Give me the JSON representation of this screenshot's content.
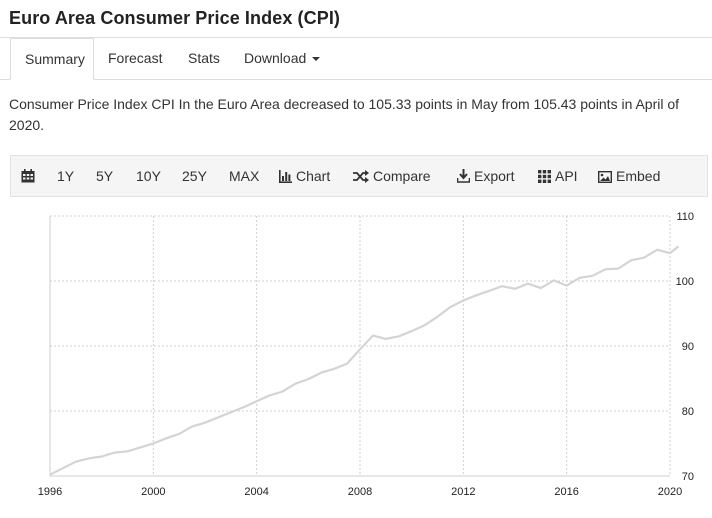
{
  "header": {
    "title": "Euro Area Consumer Price Index (CPI)"
  },
  "tabs": [
    {
      "label": "Summary",
      "active": true
    },
    {
      "label": "Forecast",
      "active": false
    },
    {
      "label": "Stats",
      "active": false
    },
    {
      "label": "Download",
      "active": false,
      "has_dropdown": true
    }
  ],
  "summary": {
    "text": "Consumer Price Index CPI In the Euro Area decreased to 105.33 points in May from 105.43 points in April of 2020."
  },
  "toolbar": {
    "calendar_icon": "calendar-icon",
    "ranges": [
      "1Y",
      "5Y",
      "10Y",
      "25Y",
      "MAX"
    ],
    "chart_label": "Chart",
    "compare_label": "Compare",
    "export_label": "Export",
    "api_label": "API",
    "embed_label": "Embed"
  },
  "colors": {
    "line": "#d4d4d4",
    "grid": "#cfcfcf",
    "border": "#dddddd",
    "toolbar_bg": "#f5f5f5"
  },
  "chart_data": {
    "type": "line",
    "title": "",
    "xlabel": "",
    "ylabel": "",
    "xlim": [
      1996,
      2020.5
    ],
    "ylim": [
      70,
      110
    ],
    "x_ticks": [
      "1996",
      "2000",
      "2004",
      "2008",
      "2012",
      "2016",
      "2020"
    ],
    "y_ticks": [
      "70",
      "80",
      "90",
      "100",
      "110"
    ],
    "grid": true,
    "series": [
      {
        "x": [
          1996.0,
          1996.5,
          1997.0,
          1997.5,
          1998.0,
          1998.5,
          1999.0,
          1999.5,
          2000.0,
          2000.5,
          2001.0,
          2001.5,
          2002.0,
          2002.5,
          2003.0,
          2003.5,
          2004.0,
          2004.5,
          2005.0,
          2005.5,
          2006.0,
          2006.5,
          2007.0,
          2007.5,
          2008.0,
          2008.5,
          2009.0,
          2009.5,
          2010.0,
          2010.5,
          2011.0,
          2011.5,
          2012.0,
          2012.5,
          2013.0,
          2013.5,
          2014.0,
          2014.5,
          2015.0,
          2015.5,
          2016.0,
          2016.5,
          2017.0,
          2017.5,
          2018.0,
          2018.5,
          2019.0,
          2019.5,
          2020.0,
          2020.33
        ],
        "y": [
          70.2,
          71.2,
          72.2,
          72.7,
          73.0,
          73.6,
          73.8,
          74.4,
          75.0,
          75.8,
          76.5,
          77.6,
          78.2,
          79.0,
          79.8,
          80.6,
          81.5,
          82.4,
          83.0,
          84.2,
          84.9,
          85.9,
          86.5,
          87.3,
          89.5,
          91.6,
          91.1,
          91.5,
          92.3,
          93.2,
          94.5,
          96.0,
          97.0,
          97.8,
          98.5,
          99.2,
          98.8,
          99.6,
          98.9,
          100.1,
          99.3,
          100.5,
          100.8,
          101.8,
          101.9,
          103.2,
          103.6,
          104.8,
          104.3,
          105.33
        ]
      }
    ]
  }
}
